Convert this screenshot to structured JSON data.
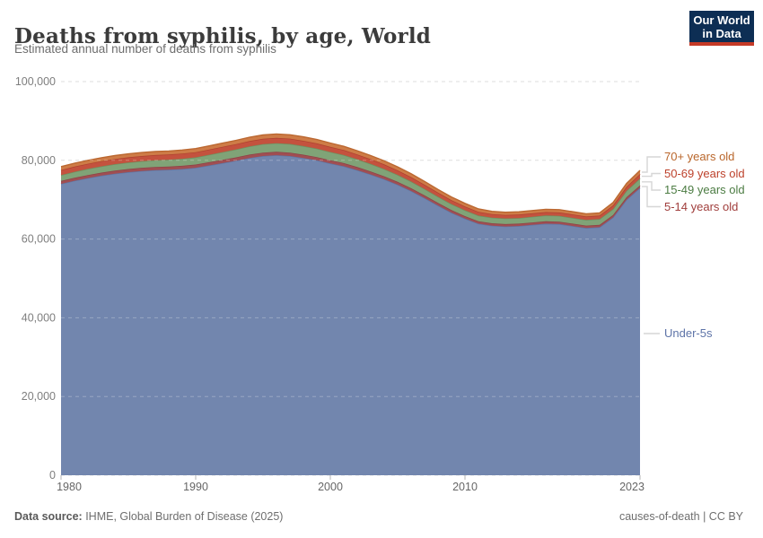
{
  "header": {
    "title": "Deaths from syphilis, by age, World",
    "subtitle": "Estimated annual number of deaths from syphilis",
    "logo": {
      "line1": "Our World",
      "line2": "in Data",
      "bg_color": "#0d2e54",
      "accent_color": "#c53a27"
    }
  },
  "footer": {
    "source_prefix": "Data source:",
    "source_text": " IHME, Global Burden of Disease (2025)",
    "right_text": "causes-of-death | CC BY"
  },
  "chart_data": {
    "type": "area",
    "stacked": true,
    "title": "Deaths from syphilis, by age, World",
    "subtitle": "Estimated annual number of deaths from syphilis",
    "xlabel": "",
    "ylabel": "",
    "xlim": [
      1980,
      2023
    ],
    "ylim": [
      0,
      100000
    ],
    "grid": "dashed-horizontal",
    "legend_position": "right",
    "x": [
      1980,
      1981,
      1982,
      1983,
      1984,
      1985,
      1986,
      1987,
      1988,
      1989,
      1990,
      1991,
      1992,
      1993,
      1994,
      1995,
      1996,
      1997,
      1998,
      1999,
      2000,
      2001,
      2002,
      2003,
      2004,
      2005,
      2006,
      2007,
      2008,
      2009,
      2010,
      2011,
      2012,
      2013,
      2014,
      2015,
      2016,
      2017,
      2018,
      2019,
      2020,
      2021,
      2022,
      2023
    ],
    "yticks": [
      {
        "value": 0,
        "label": "0"
      },
      {
        "value": 20000,
        "label": "20,000"
      },
      {
        "value": 40000,
        "label": "40,000"
      },
      {
        "value": 60000,
        "label": "60,000"
      },
      {
        "value": 80000,
        "label": "80,000"
      },
      {
        "value": 100000,
        "label": "100,000"
      }
    ],
    "xticks": [
      {
        "value": 1980,
        "label": "1980"
      },
      {
        "value": 1990,
        "label": "1990"
      },
      {
        "value": 2000,
        "label": "2000"
      },
      {
        "value": 2010,
        "label": "2010"
      },
      {
        "value": 2023,
        "label": "2023"
      }
    ],
    "series": [
      {
        "id": "under-5s",
        "label": "Under-5s",
        "color": "#7286ae",
        "line_color": "#5f76a5",
        "label_color": "#5e74a8",
        "values": [
          74000,
          74800,
          75500,
          76100,
          76600,
          77000,
          77300,
          77500,
          77600,
          77800,
          78100,
          78700,
          79300,
          79900,
          80600,
          81100,
          81300,
          81100,
          80600,
          80000,
          79200,
          78500,
          77500,
          76400,
          75200,
          73800,
          72200,
          70400,
          68500,
          66700,
          65200,
          63900,
          63400,
          63200,
          63300,
          63600,
          63900,
          63800,
          63300,
          62800,
          63000,
          65500,
          70000,
          73000
        ]
      },
      {
        "id": "5-14",
        "label": "5-14 years old",
        "color": "#a04e52",
        "line_color": "#8e4045",
        "label_color": "#a03e3c",
        "values": [
          750,
          760,
          770,
          780,
          790,
          795,
          800,
          805,
          810,
          815,
          820,
          830,
          840,
          845,
          850,
          855,
          855,
          850,
          840,
          830,
          815,
          800,
          785,
          770,
          750,
          735,
          715,
          695,
          675,
          655,
          640,
          625,
          615,
          610,
          610,
          615,
          620,
          620,
          615,
          610,
          610,
          620,
          640,
          655
        ]
      },
      {
        "id": "15-49",
        "label": "15-49 years old",
        "color": "#80a377",
        "line_color": "#6c9260",
        "label_color": "#4c7c43",
        "values": [
          1500,
          1530,
          1560,
          1590,
          1620,
          1650,
          1680,
          1710,
          1740,
          1780,
          1830,
          1890,
          1960,
          2030,
          2100,
          2160,
          2200,
          2210,
          2190,
          2150,
          2100,
          2040,
          1980,
          1910,
          1840,
          1770,
          1700,
          1630,
          1570,
          1520,
          1480,
          1450,
          1430,
          1420,
          1430,
          1450,
          1470,
          1480,
          1470,
          1460,
          1470,
          1520,
          1640,
          1750
        ]
      },
      {
        "id": "50-69",
        "label": "50-69 years old",
        "color": "#c4523e",
        "line_color": "#ae412e",
        "label_color": "#bd412b",
        "values": [
          1300,
          1305,
          1310,
          1315,
          1318,
          1320,
          1322,
          1325,
          1327,
          1328,
          1330,
          1333,
          1337,
          1341,
          1345,
          1348,
          1350,
          1348,
          1340,
          1322,
          1300,
          1272,
          1243,
          1213,
          1182,
          1150,
          1116,
          1082,
          1048,
          1014,
          980,
          940,
          900,
          890,
          885,
          880,
          877,
          873,
          870,
          872,
          880,
          920,
          1010,
          1100
        ]
      },
      {
        "id": "70-plus",
        "label": "70+ years old",
        "color": "#ce7c47",
        "line_color": "#bb6831",
        "label_color": "#b9662b",
        "values": [
          850,
          856,
          862,
          868,
          874,
          880,
          886,
          892,
          898,
          904,
          910,
          925,
          940,
          955,
          970,
          985,
          1000,
          995,
          990,
          980,
          970,
          952,
          934,
          916,
          898,
          880,
          856,
          832,
          808,
          784,
          760,
          730,
          700,
          696,
          693,
          690,
          690,
          690,
          690,
          693,
          700,
          740,
          840,
          950
        ]
      }
    ]
  }
}
